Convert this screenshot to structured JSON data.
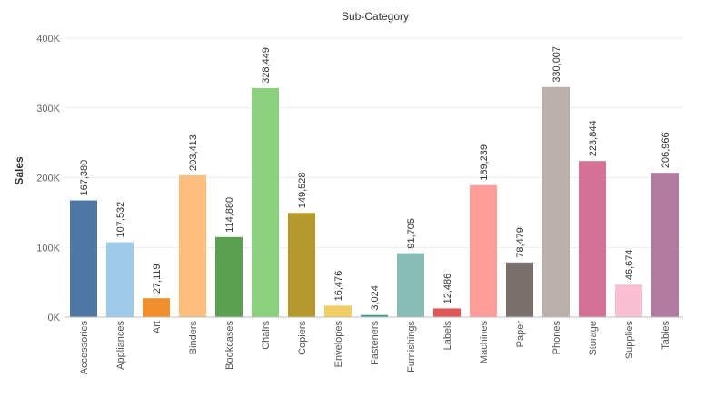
{
  "chart_data": {
    "type": "bar",
    "title": "Sub-Category",
    "xlabel": "",
    "ylabel": "Sales",
    "ylim": [
      0,
      400000
    ],
    "yticks": [
      0,
      100000,
      200000,
      300000,
      400000
    ],
    "ytick_labels": [
      "0K",
      "100K",
      "200K",
      "300K",
      "400K"
    ],
    "grid": true,
    "categories": [
      "Accessories",
      "Appliances",
      "Art",
      "Binders",
      "Bookcases",
      "Chairs",
      "Copiers",
      "Envelopes",
      "Fasteners",
      "Furnishings",
      "Labels",
      "Machines",
      "Paper",
      "Phones",
      "Storage",
      "Supplies",
      "Tables"
    ],
    "values": [
      167380,
      107532,
      27119,
      203413,
      114880,
      328449,
      149528,
      16476,
      3024,
      91705,
      12486,
      189239,
      78479,
      330007,
      223844,
      46674,
      206966
    ],
    "value_labels": [
      "167,380",
      "107,532",
      "27,119",
      "203,413",
      "114,880",
      "328,449",
      "149,528",
      "16,476",
      "3,024",
      "91,705",
      "12,486",
      "189,239",
      "78,479",
      "330,007",
      "223,844",
      "46,674",
      "206,966"
    ],
    "colors": [
      "#4e79a7",
      "#a0cbe8",
      "#f28e2b",
      "#ffbe7d",
      "#59a14f",
      "#8cd17d",
      "#b6992d",
      "#f1ce63",
      "#499894",
      "#86bcb6",
      "#e15759",
      "#ff9d9a",
      "#79706e",
      "#bab0ac",
      "#d37295",
      "#fabfd2",
      "#b07aa1"
    ]
  }
}
